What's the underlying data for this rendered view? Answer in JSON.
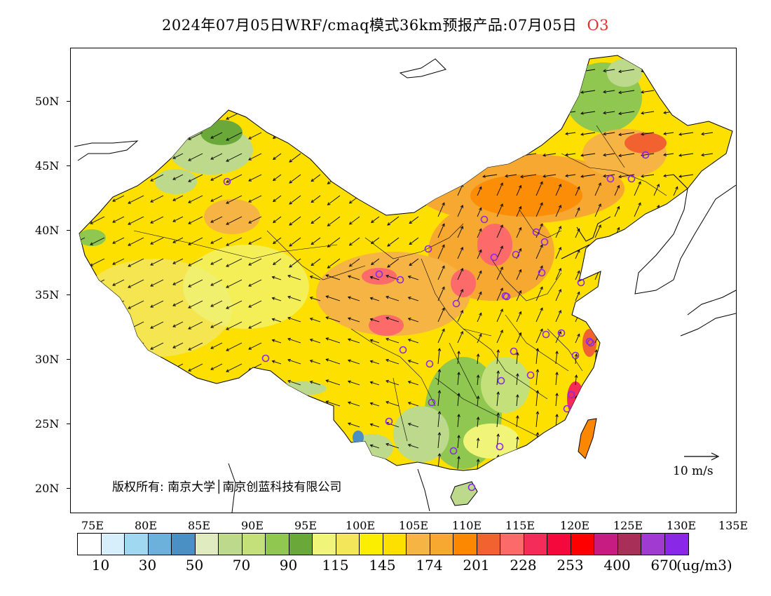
{
  "title": {
    "main": "2024年07月05日WRF/cmaq模式36km预报产品:07月05日",
    "species": "O3"
  },
  "axes": {
    "lat_labels": [
      "50N",
      "45N",
      "40N",
      "35N",
      "30N",
      "25N",
      "20N"
    ],
    "lon_labels": [
      "75E",
      "80E",
      "85E",
      "90E",
      "95E",
      "100E",
      "105E",
      "110E",
      "115E",
      "120E",
      "125E",
      "130E",
      "135E"
    ]
  },
  "copyright": "版权所有: 南京大学│南京创蓝科技有限公司",
  "wind_reference": {
    "label": "10 m/s"
  },
  "colorbar": {
    "colors": [
      "#ffffff",
      "#d6effb",
      "#a0d8f2",
      "#6cb0dc",
      "#4a90c4",
      "#e0ebc0",
      "#bcd98c",
      "#c3e07a",
      "#8fc750",
      "#6aa83a",
      "#f0f57a",
      "#f3e65a",
      "#fbee00",
      "#fde000",
      "#f6b444",
      "#f7a830",
      "#fb8800",
      "#f26230",
      "#fc6a6a",
      "#f32c5a",
      "#f5083c",
      "#ff0000",
      "#c71c82",
      "#a83058",
      "#a03ad0",
      "#8a28e8"
    ],
    "labels": [
      "10",
      "30",
      "50",
      "70",
      "90",
      "115",
      "145",
      "174",
      "201",
      "228",
      "253",
      "400",
      "670"
    ],
    "unit": "(ug/m3)"
  },
  "colors": {
    "title_species": "#e03030",
    "station_marker": "#8a28e8"
  }
}
